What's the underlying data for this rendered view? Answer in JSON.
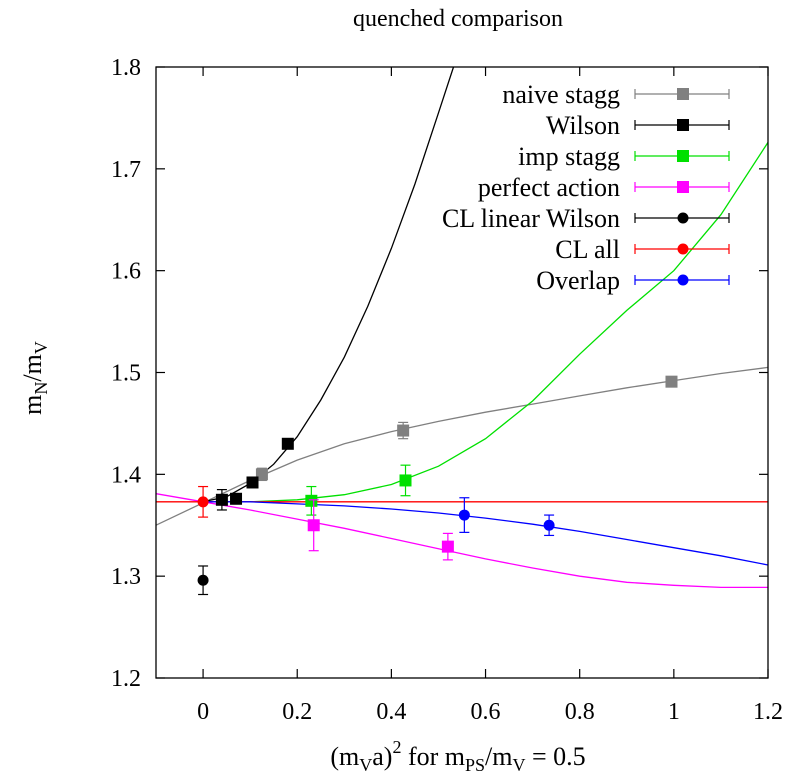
{
  "chart_data": {
    "type": "scatter",
    "title": "quenched comparison",
    "xlabel_parts": {
      "pre": "(m",
      "pre_sub": "V",
      "mid1": "a)",
      "sup": "2",
      "mid2": " for m",
      "mid2_sub": "PS",
      "mid3": "/m",
      "mid3_sub": "V",
      "post": " = 0.5"
    },
    "ylabel_parts": {
      "a": "m",
      "a_sub": "N",
      "b": "/m",
      "b_sub": "V"
    },
    "xlim": [
      -0.1,
      1.2
    ],
    "ylim": [
      1.2,
      1.8
    ],
    "xticks": [
      0,
      0.2,
      0.4,
      0.6,
      0.8,
      1,
      1.2
    ],
    "xtick_labels": [
      "0",
      "0.2",
      "0.4",
      "0.6",
      "0.8",
      "1",
      "1.2"
    ],
    "yticks": [
      1.2,
      1.3,
      1.4,
      1.5,
      1.6,
      1.7,
      1.8
    ],
    "ytick_labels": [
      "1.2",
      "1.3",
      "1.4",
      "1.5",
      "1.6",
      "1.7",
      "1.8"
    ],
    "legend_position": "top-right",
    "series": [
      {
        "name": "naive stagg",
        "color": "#808080",
        "marker": "square",
        "points": [
          {
            "x": 0.125,
            "y": 1.4,
            "err": 0.006
          },
          {
            "x": 0.425,
            "y": 1.443,
            "err": 0.008
          },
          {
            "x": 0.995,
            "y": 1.491,
            "err": 0.004
          }
        ],
        "curve": [
          [
            -0.1,
            1.35
          ],
          [
            0.0,
            1.372
          ],
          [
            0.1,
            1.394
          ],
          [
            0.2,
            1.414
          ],
          [
            0.3,
            1.43
          ],
          [
            0.4,
            1.442
          ],
          [
            0.5,
            1.452
          ],
          [
            0.6,
            1.461
          ],
          [
            0.7,
            1.469
          ],
          [
            0.8,
            1.477
          ],
          [
            0.9,
            1.485
          ],
          [
            1.0,
            1.492
          ],
          [
            1.1,
            1.499
          ],
          [
            1.2,
            1.505
          ]
        ]
      },
      {
        "name": "Wilson",
        "color": "#000000",
        "marker": "square",
        "points": [
          {
            "x": 0.04,
            "y": 1.375,
            "err": 0.01
          },
          {
            "x": 0.07,
            "y": 1.376,
            "err": 0.005
          },
          {
            "x": 0.105,
            "y": 1.392,
            "err": 0.004
          },
          {
            "x": 0.18,
            "y": 1.43,
            "err": 0.004
          }
        ],
        "curve": [
          [
            0.0,
            1.373
          ],
          [
            0.05,
            1.378
          ],
          [
            0.1,
            1.391
          ],
          [
            0.15,
            1.41
          ],
          [
            0.2,
            1.437
          ],
          [
            0.25,
            1.473
          ],
          [
            0.3,
            1.515
          ],
          [
            0.35,
            1.565
          ],
          [
            0.4,
            1.622
          ],
          [
            0.45,
            1.685
          ],
          [
            0.5,
            1.755
          ],
          [
            0.532,
            1.8
          ]
        ]
      },
      {
        "name": "imp stagg",
        "color": "#00e000",
        "marker": "square",
        "points": [
          {
            "x": 0.23,
            "y": 1.374,
            "err": 0.014
          },
          {
            "x": 0.43,
            "y": 1.394,
            "err": 0.015
          }
        ],
        "curve": [
          [
            0.0,
            1.373
          ],
          [
            0.1,
            1.373
          ],
          [
            0.2,
            1.375
          ],
          [
            0.3,
            1.38
          ],
          [
            0.4,
            1.39
          ],
          [
            0.5,
            1.408
          ],
          [
            0.6,
            1.435
          ],
          [
            0.7,
            1.472
          ],
          [
            0.8,
            1.518
          ],
          [
            0.9,
            1.561
          ],
          [
            1.0,
            1.6
          ],
          [
            1.1,
            1.655
          ],
          [
            1.2,
            1.726
          ]
        ]
      },
      {
        "name": "perfect action",
        "color": "#ff00ff",
        "marker": "square",
        "points": [
          {
            "x": 0.235,
            "y": 1.35,
            "err": 0.025
          },
          {
            "x": 0.52,
            "y": 1.329,
            "err": 0.013
          }
        ],
        "curve": [
          [
            -0.1,
            1.381
          ],
          [
            0.0,
            1.373
          ],
          [
            0.1,
            1.365
          ],
          [
            0.2,
            1.356
          ],
          [
            0.3,
            1.347
          ],
          [
            0.4,
            1.337
          ],
          [
            0.5,
            1.327
          ],
          [
            0.6,
            1.317
          ],
          [
            0.7,
            1.308
          ],
          [
            0.8,
            1.3
          ],
          [
            0.9,
            1.294
          ],
          [
            1.0,
            1.291
          ],
          [
            1.1,
            1.289
          ],
          [
            1.2,
            1.289
          ]
        ]
      },
      {
        "name": "CL linear Wilson",
        "color": "#000000",
        "marker": "circle",
        "points": [
          {
            "x": 0.0,
            "y": 1.296,
            "err": 0.014
          }
        ],
        "curve": []
      },
      {
        "name": "CL all",
        "color": "#ff0000",
        "marker": "circle",
        "points": [
          {
            "x": 0.0,
            "y": 1.373,
            "err": 0.015
          }
        ],
        "curve": [
          [
            -0.1,
            1.373
          ],
          [
            1.2,
            1.373
          ]
        ]
      },
      {
        "name": "Overlap",
        "color": "#0000ff",
        "marker": "circle",
        "points": [
          {
            "x": 0.555,
            "y": 1.36,
            "err": 0.017
          },
          {
            "x": 0.735,
            "y": 1.35,
            "err": 0.01
          }
        ],
        "curve": [
          [
            0.0,
            1.373
          ],
          [
            0.1,
            1.373
          ],
          [
            0.2,
            1.371
          ],
          [
            0.3,
            1.369
          ],
          [
            0.4,
            1.366
          ],
          [
            0.5,
            1.362
          ],
          [
            0.6,
            1.357
          ],
          [
            0.7,
            1.351
          ],
          [
            0.8,
            1.344
          ],
          [
            0.9,
            1.336
          ],
          [
            1.0,
            1.328
          ],
          [
            1.1,
            1.32
          ],
          [
            1.2,
            1.311
          ]
        ]
      }
    ]
  }
}
